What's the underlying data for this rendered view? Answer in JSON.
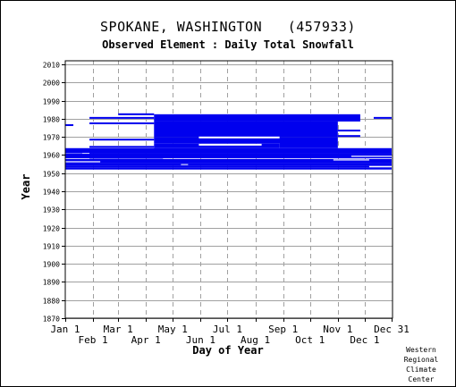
{
  "chart_data": {
    "type": "heatmap",
    "title": "SPOKANE, WASHINGTON   (457933)",
    "subtitle": "Observed Element : Daily Total Snowfall",
    "xlabel": "Day of Year",
    "ylabel": "Year",
    "xlim": [
      1,
      366
    ],
    "ylim": [
      1870,
      2012
    ],
    "yticks": [
      1870,
      1880,
      1890,
      1900,
      1910,
      1920,
      1930,
      1940,
      1950,
      1960,
      1970,
      1980,
      1990,
      2000,
      2010
    ],
    "xticks_top": [
      {
        "label": "Jan 1",
        "day": 1
      },
      {
        "label": "Mar 1",
        "day": 60
      },
      {
        "label": "May 1",
        "day": 121
      },
      {
        "label": "Jul 1",
        "day": 182
      },
      {
        "label": "Sep 1",
        "day": 244
      },
      {
        "label": "Nov 1",
        "day": 305
      },
      {
        "label": "Dec 31",
        "day": 365
      }
    ],
    "xticks_bottom": [
      {
        "label": "Feb 1",
        "day": 32
      },
      {
        "label": "Apr 1",
        "day": 91
      },
      {
        "label": "Jun 1",
        "day": 152
      },
      {
        "label": "Aug 1",
        "day": 213
      },
      {
        "label": "Oct 1",
        "day": 274
      },
      {
        "label": "Dec 1",
        "day": 335
      }
    ],
    "grid": true,
    "bar_color": "#0000ee",
    "coverage": [
      {
        "from_year": 1952,
        "to_year": 1953.2,
        "start_day": 1,
        "end_day": 365
      },
      {
        "from_year": 1953.2,
        "to_year": 1954.0,
        "start_day": 1,
        "end_day": 340
      },
      {
        "from_year": 1954.0,
        "to_year": 1955.5,
        "start_day": 1,
        "end_day": 365
      },
      {
        "from_year": 1955.5,
        "to_year": 1957.8,
        "start_day": 1,
        "end_day": 365
      },
      {
        "from_year": 1958.2,
        "to_year": 1960.8,
        "start_day": 1,
        "end_day": 365
      },
      {
        "from_year": 1961.2,
        "to_year": 1963.8,
        "start_day": 1,
        "end_day": 365
      },
      {
        "from_year": 1960.8,
        "to_year": 1961.2,
        "start_day": 28,
        "end_day": 365
      },
      {
        "from_year": 1963.8,
        "to_year": 1966.5,
        "start_day": 100,
        "end_day": 240
      },
      {
        "from_year": 1963.8,
        "to_year": 1967.0,
        "start_day": 240,
        "end_day": 305
      },
      {
        "from_year": 1966.5,
        "to_year": 1970.0,
        "start_day": 100,
        "end_day": 305
      },
      {
        "from_year": 1970.0,
        "to_year": 1978.5,
        "start_day": 100,
        "end_day": 305
      },
      {
        "from_year": 1978.5,
        "to_year": 1982.5,
        "start_day": 100,
        "end_day": 330
      },
      {
        "from_year": 1980.0,
        "to_year": 1981.0,
        "start_day": 28,
        "end_day": 100
      },
      {
        "from_year": 1977.0,
        "to_year": 1978.0,
        "start_day": 28,
        "end_day": 100
      },
      {
        "from_year": 1982.0,
        "to_year": 1983.0,
        "start_day": 60,
        "end_day": 100
      },
      {
        "from_year": 1976.0,
        "to_year": 1977.0,
        "start_day": 1,
        "end_day": 10
      },
      {
        "from_year": 1980.0,
        "to_year": 1981.0,
        "start_day": 345,
        "end_day": 365
      },
      {
        "from_year": 1973.0,
        "to_year": 1974.0,
        "start_day": 305,
        "end_day": 330
      },
      {
        "from_year": 1970.0,
        "to_year": 1971.0,
        "start_day": 305,
        "end_day": 330
      },
      {
        "from_year": 1968.0,
        "to_year": 1969.0,
        "start_day": 28,
        "end_day": 100
      },
      {
        "from_year": 1964.0,
        "to_year": 1965.0,
        "start_day": 28,
        "end_day": 100
      },
      {
        "from_year": 1958.0,
        "to_year": 1959.0,
        "start_day": 28,
        "end_day": 110
      },
      {
        "from_year": 1960.0,
        "to_year": 1961.0,
        "start_day": 1,
        "end_day": 20
      }
    ],
    "gaps": [
      {
        "from_year": 1969.2,
        "to_year": 1970.2,
        "start_day": 150,
        "end_day": 240
      },
      {
        "from_year": 1965.2,
        "to_year": 1966.2,
        "start_day": 150,
        "end_day": 220
      },
      {
        "from_year": 1956.0,
        "to_year": 1956.6,
        "start_day": 1,
        "end_day": 40
      },
      {
        "from_year": 1954.5,
        "to_year": 1955.0,
        "start_day": 130,
        "end_day": 138
      },
      {
        "from_year": 1957.0,
        "to_year": 1957.6,
        "start_day": 300,
        "end_day": 340
      },
      {
        "from_year": 1959.0,
        "to_year": 1959.6,
        "start_day": 320,
        "end_day": 365
      }
    ]
  },
  "credit": [
    "Western",
    "Regional",
    "Climate",
    "Center"
  ]
}
